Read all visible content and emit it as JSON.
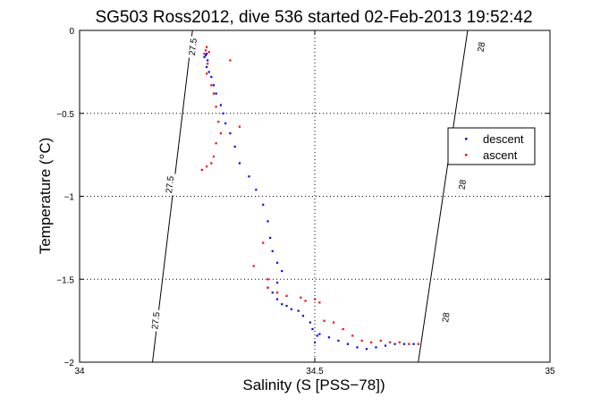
{
  "chart_data": {
    "type": "scatter",
    "title": "SG503 Ross2012, dive 536 started 02-Feb-2013 19:52:42",
    "xlabel": "Salinity (S [PSS−78])",
    "ylabel": "Temperature (°C)",
    "xlim": [
      34,
      35
    ],
    "ylim": [
      -2,
      0
    ],
    "xticks": [
      34,
      34.5,
      35
    ],
    "xtick_labels": [
      "34",
      "34.5",
      "35"
    ],
    "yticks": [
      -2,
      -1.5,
      -1,
      -0.5,
      0
    ],
    "ytick_labels": [
      "−2",
      "−1.5",
      "−1",
      "−0.5",
      "0"
    ],
    "grid": true,
    "legend_position": "right",
    "colors": {
      "descent": "#0000ff",
      "ascent": "#ff0000",
      "axis": "#000000",
      "contour": "#000000"
    },
    "contours": [
      {
        "level": "27.5",
        "points": [
          [
            34.155,
            -2.0
          ],
          [
            34.24,
            -0.0
          ]
        ],
        "label_positions": [
          [
            34.163,
            -1.75
          ],
          [
            34.193,
            -0.93
          ],
          [
            34.242,
            -0.1
          ]
        ]
      },
      {
        "level": "28",
        "points": [
          [
            34.72,
            -2.0
          ],
          [
            34.825,
            -0.0
          ]
        ],
        "label_positions": [
          [
            34.78,
            -1.73
          ],
          [
            34.815,
            -0.93
          ],
          [
            34.855,
            -0.1
          ]
        ]
      }
    ],
    "series": [
      {
        "name": "descent",
        "points": [
          [
            34.265,
            -0.16
          ],
          [
            34.268,
            -0.15
          ],
          [
            34.27,
            -0.14
          ],
          [
            34.272,
            -0.18
          ],
          [
            34.27,
            -0.22
          ],
          [
            34.275,
            -0.25
          ],
          [
            34.28,
            -0.28
          ],
          [
            34.285,
            -0.33
          ],
          [
            34.29,
            -0.38
          ],
          [
            34.3,
            -0.45
          ],
          [
            34.305,
            -0.5
          ],
          [
            34.31,
            -0.56
          ],
          [
            34.32,
            -0.62
          ],
          [
            34.33,
            -0.7
          ],
          [
            34.34,
            -0.8
          ],
          [
            34.36,
            -0.88
          ],
          [
            34.375,
            -0.96
          ],
          [
            34.39,
            -1.05
          ],
          [
            34.4,
            -1.15
          ],
          [
            34.405,
            -1.25
          ],
          [
            34.41,
            -1.33
          ],
          [
            34.42,
            -1.4
          ],
          [
            34.43,
            -1.45
          ],
          [
            34.42,
            -1.52
          ],
          [
            34.4,
            -1.55
          ],
          [
            34.41,
            -1.58
          ],
          [
            34.42,
            -1.62
          ],
          [
            34.43,
            -1.65
          ],
          [
            34.44,
            -1.66
          ],
          [
            34.45,
            -1.68
          ],
          [
            34.465,
            -1.69
          ],
          [
            34.475,
            -1.72
          ],
          [
            34.49,
            -1.76
          ],
          [
            34.495,
            -1.8
          ],
          [
            34.505,
            -1.84
          ],
          [
            34.5,
            -1.88
          ],
          [
            34.51,
            -1.83
          ],
          [
            34.53,
            -1.85
          ],
          [
            34.55,
            -1.87
          ],
          [
            34.57,
            -1.89
          ],
          [
            34.59,
            -1.91
          ],
          [
            34.61,
            -1.92
          ],
          [
            34.63,
            -1.91
          ],
          [
            34.65,
            -1.9
          ],
          [
            34.67,
            -1.89
          ],
          [
            34.69,
            -1.89
          ],
          [
            34.71,
            -1.89
          ]
        ]
      },
      {
        "name": "ascent",
        "points": [
          [
            34.265,
            -0.14
          ],
          [
            34.268,
            -0.12
          ],
          [
            34.27,
            -0.1
          ],
          [
            34.275,
            -0.13
          ],
          [
            34.272,
            -0.2
          ],
          [
            34.27,
            -0.26
          ],
          [
            34.28,
            -0.33
          ],
          [
            34.285,
            -0.38
          ],
          [
            34.32,
            -0.18
          ],
          [
            34.29,
            -0.46
          ],
          [
            34.295,
            -0.55
          ],
          [
            34.3,
            -0.62
          ],
          [
            34.29,
            -0.68
          ],
          [
            34.285,
            -0.76
          ],
          [
            34.28,
            -0.8
          ],
          [
            34.27,
            -0.82
          ],
          [
            34.26,
            -0.84
          ],
          [
            34.34,
            -0.58
          ],
          [
            34.39,
            -1.28
          ],
          [
            34.37,
            -1.42
          ],
          [
            34.4,
            -1.5
          ],
          [
            34.4,
            -1.55
          ],
          [
            34.42,
            -1.58
          ],
          [
            34.44,
            -1.6
          ],
          [
            34.47,
            -1.61
          ],
          [
            34.48,
            -1.63
          ],
          [
            34.5,
            -1.62
          ],
          [
            34.51,
            -1.64
          ],
          [
            34.52,
            -1.75
          ],
          [
            34.54,
            -1.76
          ],
          [
            34.56,
            -1.8
          ],
          [
            34.58,
            -1.84
          ],
          [
            34.6,
            -1.87
          ],
          [
            34.62,
            -1.88
          ],
          [
            34.64,
            -1.87
          ],
          [
            34.66,
            -1.88
          ],
          [
            34.68,
            -1.88
          ],
          [
            34.7,
            -1.89
          ],
          [
            34.72,
            -1.89
          ]
        ]
      }
    ]
  }
}
